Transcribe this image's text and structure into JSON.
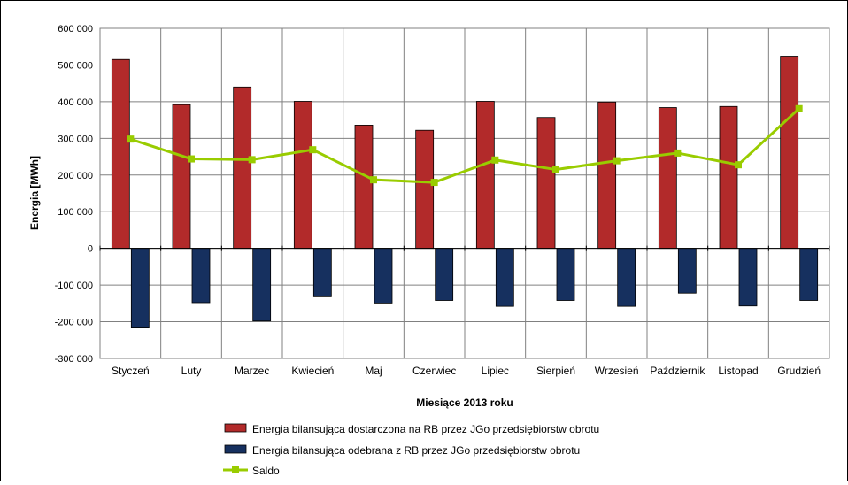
{
  "chart_data": {
    "type": "bar",
    "title": "",
    "xlabel": "Miesiące 2013  roku",
    "ylabel": "Energia [MWh]",
    "ylim": [
      -300000,
      600000
    ],
    "yticks": [
      600000,
      500000,
      400000,
      300000,
      200000,
      100000,
      0,
      -100000,
      -200000,
      -300000
    ],
    "ytick_labels": [
      "600 000",
      "500 000",
      "400 000",
      "300 000",
      "200 000",
      "100 000",
      "0",
      "-100 000",
      "-200 000",
      "-300 000"
    ],
    "grid": true,
    "legend_position": "bottom",
    "categories": [
      "Styczeń",
      "Luty",
      "Marzec",
      "Kwiecień",
      "Maj",
      "Czerwiec",
      "Lipiec",
      "Sierpień",
      "Wrzesień",
      "Październik",
      "Listopad",
      "Grudzień"
    ],
    "series": [
      {
        "name": "Energia bilansująca dostarczona na RB przez JGo przedsiębiorstw obrotu",
        "type": "bar",
        "color": "#b22a2a",
        "values": [
          515000,
          392000,
          440000,
          401000,
          336000,
          322000,
          401000,
          357000,
          399000,
          384000,
          387000,
          524000
        ]
      },
      {
        "name": "Energia bilansująca odebrana z RB przez JGo przedsiębiorstw obrotu",
        "type": "bar",
        "color": "#16305f",
        "values": [
          -217000,
          -148000,
          -198000,
          -132000,
          -149000,
          -142000,
          -158000,
          -142000,
          -158000,
          -122000,
          -157000,
          -142000
        ]
      },
      {
        "name": "Saldo",
        "type": "line",
        "color": "#99cc00",
        "values": [
          298000,
          244000,
          242000,
          269000,
          187000,
          180000,
          241000,
          215000,
          239000,
          260000,
          228000,
          381000
        ]
      }
    ]
  }
}
